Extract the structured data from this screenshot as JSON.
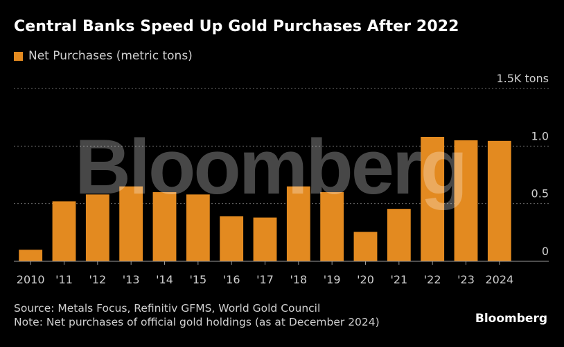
{
  "title": "Central Banks Speed Up Gold Purchases After 2022",
  "legend": {
    "label": "Net Purchases (metric tons)"
  },
  "colors": {
    "bar": "#E38A20",
    "background": "#000000",
    "grid": "#6b6b6b",
    "axis": "#9a9a9a",
    "tick_text": "#d0d0d0"
  },
  "watermark": "Bloomberg",
  "footer": {
    "source": "Source: Metals Focus, Refinitiv GFMS, World Gold Council",
    "note": "Note: Net purchases of official gold holdings (as at December 2024)"
  },
  "brand": "Bloomberg",
  "chart_data": {
    "type": "bar",
    "categories": [
      "2010",
      "'11",
      "'12",
      "'13",
      "'14",
      "'15",
      "'16",
      "'17",
      "'18",
      "'19",
      "'20",
      "'21",
      "'22",
      "'23",
      "2024"
    ],
    "series": [
      {
        "name": "Net Purchases (metric tons)",
        "values": [
          100,
          520,
          580,
          650,
          600,
          580,
          390,
          380,
          650,
          600,
          255,
          455,
          1080,
          1050,
          1045
        ]
      }
    ],
    "ylim": [
      0,
      1500
    ],
    "yticks": [
      0,
      500,
      1000,
      1500
    ],
    "ytick_labels": [
      "0",
      "0.5",
      "1.0",
      "1.5K tons"
    ],
    "grid": true,
    "legend_position": "top-left"
  }
}
